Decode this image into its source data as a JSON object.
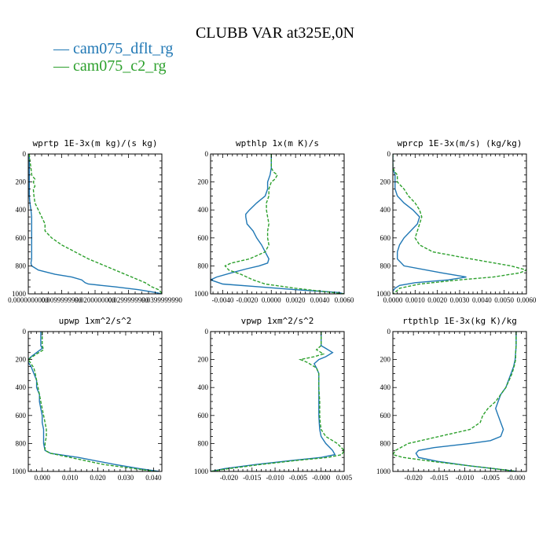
{
  "figure_title": "CLUBB VAR at325E,0N",
  "legend": [
    {
      "name": "cam075_dflt_rg",
      "color": "#1f77b4",
      "dash": ""
    },
    {
      "name": "cam075_c2_rg",
      "color": "#2ca02c",
      "dash": "4,2"
    }
  ],
  "chart_data": [
    {
      "type": "line",
      "title": "wprtp  1E-3x(m kg)/(s kg)",
      "xlim": [
        0,
        0.04
      ],
      "ylim": [
        1000,
        0
      ],
      "x_ticks": [
        0,
        0.01,
        0.02,
        0.03,
        0.04
      ],
      "x_tick_labels": [
        "0.0000000000",
        "0.0099999990",
        "0.0200000000",
        "0.0299999990",
        "0.0399999990"
      ],
      "y_ticks": [
        0,
        200,
        400,
        600,
        800,
        1000
      ],
      "y_tick_labels": [
        "0",
        "200",
        "400",
        "600",
        "800",
        "1000"
      ],
      "series": [
        {
          "name": "cam075_dflt_rg",
          "p": [
            0,
            50,
            100,
            150,
            200,
            250,
            300,
            350,
            400,
            450,
            500,
            550,
            600,
            650,
            700,
            750,
            780,
            800,
            830,
            860,
            880,
            900,
            920,
            930,
            950,
            970,
            990,
            1000
          ],
          "x": [
            0.0003,
            0.0003,
            0.0003,
            0.0003,
            0.0003,
            0.0003,
            0.0003,
            0.0005,
            0.0008,
            0.001,
            0.001,
            0.001,
            0.001,
            0.001,
            0.001,
            0.001,
            0.0008,
            0.001,
            0.003,
            0.008,
            0.013,
            0.016,
            0.017,
            0.018,
            0.026,
            0.033,
            0.038,
            0.04
          ]
        },
        {
          "name": "cam075_c2_rg",
          "p": [
            0,
            50,
            100,
            150,
            180,
            200,
            230,
            250,
            300,
            350,
            400,
            450,
            500,
            550,
            600,
            650,
            700,
            750,
            800,
            850,
            900,
            920,
            950,
            970,
            990,
            1000
          ],
          "x": [
            0.0003,
            0.0005,
            0.0008,
            0.001,
            0.002,
            0.0015,
            0.002,
            0.0015,
            0.0017,
            0.002,
            0.003,
            0.004,
            0.005,
            0.005,
            0.007,
            0.01,
            0.014,
            0.018,
            0.023,
            0.028,
            0.033,
            0.035,
            0.037,
            0.039,
            0.0398,
            0.04
          ]
        }
      ]
    },
    {
      "type": "line",
      "title": "wpthlp  1x(m K)/s",
      "xlim": [
        -0.005,
        0.006
      ],
      "ylim": [
        1000,
        0
      ],
      "x_ticks": [
        -0.004,
        -0.002,
        0.0,
        0.002,
        0.004,
        0.006
      ],
      "x_tick_labels": [
        "-0.0040",
        "-0.0020",
        "0.0000",
        "0.0020",
        "0.0040",
        "0.0060"
      ],
      "y_ticks": [
        0,
        200,
        400,
        600,
        800,
        1000
      ],
      "y_tick_labels": [
        "0",
        "200",
        "400",
        "600",
        "800",
        "1000"
      ],
      "series": [
        {
          "name": "cam075_dflt_rg",
          "p": [
            0,
            100,
            150,
            200,
            250,
            300,
            350,
            400,
            430,
            450,
            500,
            550,
            600,
            650,
            700,
            750,
            780,
            800,
            820,
            850,
            880,
            900,
            930,
            950,
            970,
            990,
            1000
          ],
          "x": [
            0.0,
            0.0,
            -0.0001,
            -0.0003,
            -0.0003,
            -0.0005,
            -0.0012,
            -0.0018,
            -0.0021,
            -0.0021,
            -0.002,
            -0.0015,
            -0.0012,
            -0.0008,
            -0.0005,
            -0.0002,
            -0.0003,
            -0.001,
            -0.002,
            -0.0033,
            -0.0045,
            -0.005,
            -0.004,
            -0.001,
            0.002,
            0.0055,
            0.006
          ]
        },
        {
          "name": "cam075_c2_rg",
          "p": [
            0,
            100,
            130,
            150,
            180,
            200,
            250,
            300,
            350,
            400,
            450,
            500,
            550,
            600,
            650,
            700,
            750,
            780,
            800,
            830,
            860,
            900,
            930,
            960,
            990,
            1000
          ],
          "x": [
            0.0,
            0.0,
            0.0002,
            0.0005,
            0.0003,
            0.0,
            -0.0002,
            -0.0002,
            -0.0004,
            -0.0004,
            -0.0003,
            -0.0002,
            -0.0003,
            -0.0003,
            -0.0002,
            -0.0005,
            -0.0018,
            -0.0033,
            -0.0038,
            -0.0035,
            -0.0025,
            -0.0015,
            -0.0005,
            0.002,
            0.005,
            0.006
          ]
        }
      ]
    },
    {
      "type": "line",
      "title": "wprcp  1E-3x(m/s) (kg/kg)",
      "xlim": [
        0,
        0.006
      ],
      "ylim": [
        1000,
        0
      ],
      "x_ticks": [
        0,
        0.001,
        0.002,
        0.003,
        0.004,
        0.005,
        0.006
      ],
      "x_tick_labels": [
        "0.0000",
        "0.0010",
        "0.0020",
        "0.0030",
        "0.0040",
        "0.0050",
        "0.0060"
      ],
      "y_ticks": [
        0,
        200,
        400,
        600,
        800,
        1000
      ],
      "y_tick_labels": [
        "0",
        "200",
        "400",
        "600",
        "800",
        "1000"
      ],
      "series": [
        {
          "name": "cam075_dflt_rg",
          "p": [
            0,
            100,
            150,
            200,
            250,
            300,
            350,
            400,
            450,
            500,
            550,
            600,
            650,
            700,
            750,
            800,
            850,
            880,
            900,
            920,
            940,
            960,
            980,
            1000
          ],
          "x": [
            0.0,
            0.0,
            0.0001,
            0.0001,
            0.0001,
            0.0002,
            0.0005,
            0.0009,
            0.0012,
            0.0011,
            0.0008,
            0.0005,
            0.0003,
            0.0002,
            0.0002,
            0.0005,
            0.0022,
            0.0033,
            0.0025,
            0.001,
            0.0003,
            0.0001,
            0.0,
            0.0
          ]
        },
        {
          "name": "cam075_c2_rg",
          "p": [
            0,
            100,
            130,
            150,
            200,
            250,
            300,
            350,
            400,
            450,
            500,
            550,
            600,
            650,
            700,
            750,
            800,
            830,
            850,
            880,
            900,
            930,
            960,
            990,
            1000
          ],
          "x": [
            0.0,
            0.0,
            0.0001,
            0.0002,
            0.0002,
            0.0005,
            0.0007,
            0.001,
            0.0012,
            0.0013,
            0.0012,
            0.0011,
            0.001,
            0.0012,
            0.0018,
            0.0035,
            0.0053,
            0.006,
            0.0057,
            0.0045,
            0.003,
            0.0012,
            0.0003,
            0.0001,
            0.0
          ]
        }
      ]
    },
    {
      "type": "line",
      "title": "upwp  1xm^2/s^2",
      "xlim": [
        -0.005,
        0.043
      ],
      "ylim": [
        1000,
        0
      ],
      "x_ticks": [
        0,
        0.01,
        0.02,
        0.03,
        0.04
      ],
      "x_tick_labels": [
        "0.000",
        "0.010",
        "0.020",
        "0.030",
        "0.040"
      ],
      "y_ticks": [
        0,
        200,
        400,
        600,
        800,
        1000
      ],
      "y_tick_labels": [
        "0",
        "200",
        "400",
        "600",
        "800",
        "1000"
      ],
      "series": [
        {
          "name": "cam075_dflt_rg",
          "p": [
            0,
            100,
            120,
            150,
            180,
            200,
            220,
            250,
            300,
            350,
            400,
            450,
            500,
            550,
            600,
            650,
            700,
            750,
            800,
            850,
            870,
            900,
            950,
            980,
            1000
          ],
          "x": [
            -0.0005,
            -0.0005,
            0.0,
            -0.002,
            -0.004,
            -0.005,
            -0.005,
            -0.004,
            -0.003,
            -0.002,
            -0.002,
            -0.001,
            -0.001,
            -0.0005,
            0.0,
            0.0,
            0.0005,
            0.0005,
            0.0005,
            0.001,
            0.003,
            0.013,
            0.026,
            0.035,
            0.042
          ]
        },
        {
          "name": "cam075_c2_rg",
          "p": [
            0,
            100,
            130,
            160,
            200,
            230,
            260,
            300,
            350,
            400,
            450,
            500,
            550,
            600,
            650,
            700,
            750,
            800,
            850,
            870,
            900,
            950,
            980,
            1000
          ],
          "x": [
            0.0,
            0.0,
            0.0005,
            -0.002,
            -0.005,
            -0.004,
            -0.003,
            -0.0025,
            -0.002,
            -0.0015,
            -0.001,
            -0.0005,
            0.0,
            0.0005,
            0.001,
            0.0015,
            0.0015,
            0.001,
            0.001,
            0.003,
            0.01,
            0.022,
            0.033,
            0.041
          ]
        }
      ]
    },
    {
      "type": "line",
      "title": "vpwp  1xm^2/s^2",
      "xlim": [
        -0.024,
        0.005
      ],
      "ylim": [
        1000,
        0
      ],
      "x_ticks": [
        -0.02,
        -0.015,
        -0.01,
        -0.005,
        0.0,
        0.005
      ],
      "x_tick_labels": [
        "-0.020",
        "-0.015",
        "-0.010",
        "-0.005",
        "-0.000",
        "0.005"
      ],
      "y_ticks": [
        0,
        200,
        400,
        600,
        800,
        1000
      ],
      "y_tick_labels": [
        "0",
        "200",
        "400",
        "600",
        "800",
        "1000"
      ],
      "series": [
        {
          "name": "cam075_dflt_rg",
          "p": [
            0,
            80,
            100,
            120,
            150,
            180,
            200,
            230,
            260,
            300,
            350,
            400,
            450,
            500,
            550,
            600,
            650,
            700,
            750,
            800,
            850,
            880,
            900,
            920,
            950,
            980,
            1000
          ],
          "x": [
            0.0,
            0.0,
            0.0,
            0.001,
            0.0025,
            0.001,
            -0.0005,
            -0.0015,
            -0.001,
            -0.0005,
            -0.0005,
            -0.0005,
            -0.0005,
            -0.0005,
            -0.0005,
            -0.0005,
            -0.0004,
            -0.0003,
            0.0,
            0.001,
            0.0025,
            0.003,
            0.0,
            -0.006,
            -0.014,
            -0.021,
            -0.024
          ]
        },
        {
          "name": "cam075_c2_rg",
          "p": [
            0,
            80,
            100,
            130,
            160,
            180,
            200,
            220,
            260,
            300,
            350,
            400,
            450,
            500,
            550,
            600,
            650,
            700,
            750,
            800,
            850,
            880,
            900,
            920,
            950,
            980,
            1000
          ],
          "x": [
            0.0,
            0.0,
            0.0,
            -0.001,
            0.0005,
            -0.0015,
            -0.0045,
            -0.003,
            -0.001,
            -0.0005,
            -0.0005,
            -0.0005,
            -0.0004,
            -0.0003,
            -0.0003,
            -0.0003,
            -0.0002,
            0.0,
            0.001,
            0.0035,
            0.005,
            0.0045,
            0.0015,
            -0.005,
            -0.013,
            -0.02,
            -0.024
          ]
        }
      ]
    },
    {
      "type": "line",
      "title": "rtpthlp  1E-3x(kg K)/kg",
      "xlim": [
        -0.024,
        0.002
      ],
      "ylim": [
        1000,
        0
      ],
      "x_ticks": [
        -0.02,
        -0.015,
        -0.01,
        -0.005,
        0.0
      ],
      "x_tick_labels": [
        "-0.020",
        "-0.015",
        "-0.010",
        "-0.005",
        "-0.000"
      ],
      "y_ticks": [
        0,
        200,
        400,
        600,
        800,
        1000
      ],
      "y_tick_labels": [
        "0",
        "200",
        "400",
        "600",
        "800",
        "1000"
      ],
      "series": [
        {
          "name": "cam075_dflt_rg",
          "p": [
            0,
            100,
            150,
            200,
            250,
            300,
            350,
            400,
            450,
            500,
            550,
            600,
            650,
            700,
            750,
            780,
            800,
            830,
            850,
            870,
            900,
            930,
            960,
            990,
            1000
          ],
          "x": [
            0.0,
            0.0,
            -0.0001,
            -0.0002,
            -0.0005,
            -0.001,
            -0.0015,
            -0.002,
            -0.003,
            -0.0035,
            -0.004,
            -0.0035,
            -0.003,
            -0.0025,
            -0.003,
            -0.005,
            -0.009,
            -0.016,
            -0.019,
            -0.0195,
            -0.019,
            -0.015,
            -0.009,
            -0.002,
            0.0
          ]
        },
        {
          "name": "cam075_c2_rg",
          "p": [
            0,
            100,
            150,
            200,
            250,
            300,
            350,
            400,
            450,
            500,
            550,
            600,
            650,
            700,
            750,
            800,
            850,
            880,
            900,
            930,
            960,
            990,
            1000
          ],
          "x": [
            0.0,
            0.0,
            -0.0001,
            -0.0001,
            -0.0004,
            -0.0008,
            -0.0014,
            -0.002,
            -0.003,
            -0.004,
            -0.0055,
            -0.0065,
            -0.007,
            -0.009,
            -0.015,
            -0.021,
            -0.0235,
            -0.024,
            -0.022,
            -0.016,
            -0.009,
            -0.002,
            0.0
          ]
        }
      ]
    }
  ]
}
